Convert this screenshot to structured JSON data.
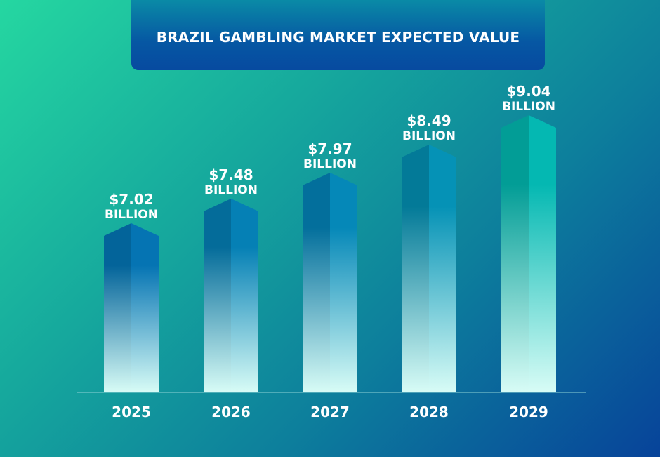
{
  "chart_data": {
    "type": "bar",
    "title": "BRAZIL GAMBLING MARKET EXPECTED VALUE",
    "categories": [
      "2025",
      "2026",
      "2027",
      "2028",
      "2029"
    ],
    "values": [
      7.02,
      7.48,
      7.97,
      8.49,
      9.04
    ],
    "value_labels": [
      "$7.02",
      "$7.48",
      "$7.97",
      "$8.49",
      "$9.04"
    ],
    "unit_label": "BILLION",
    "xlabel": "",
    "ylabel": "",
    "grid": false,
    "legend": "none",
    "colors": {
      "bar_top": [
        "#03649a",
        "#046c9a",
        "#036f9c",
        "#037a98",
        "#029d96"
      ],
      "bar_top_right": [
        "#0574b3",
        "#0580b5",
        "#0588b8",
        "#0592b6",
        "#04b8b2"
      ],
      "bar_bottom": "#d8fcf6",
      "text": "#ffffff",
      "baseline": "#8fd3d6"
    }
  }
}
